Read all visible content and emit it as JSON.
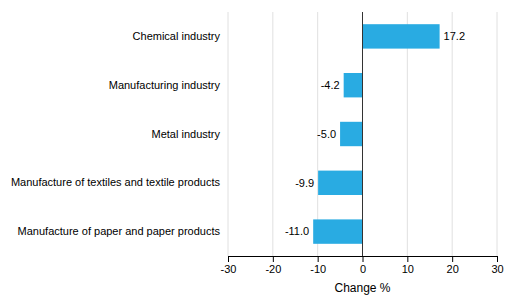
{
  "chart_data": {
    "type": "bar",
    "orientation": "horizontal",
    "categories": [
      "Manufacture of paper and paper products",
      "Manufacture of textiles and textile products",
      "Metal industry",
      "Manufacturing industry",
      "Chemical industry"
    ],
    "values": [
      -11.0,
      -9.9,
      -5.0,
      -4.2,
      17.2
    ],
    "value_labels": [
      "-11.0",
      "-9.9",
      "-5.0",
      "-4.2",
      "17.2"
    ],
    "data_labels": true,
    "color": "#29abe2",
    "xlabel": "Change %",
    "xlim": [
      -30,
      30
    ],
    "xticks": [
      -30,
      -20,
      -10,
      0,
      10,
      20,
      30
    ],
    "grid": true
  }
}
